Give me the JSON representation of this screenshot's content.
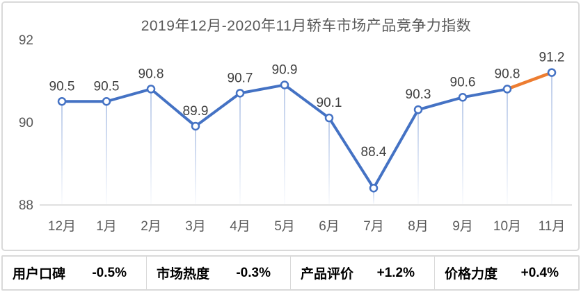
{
  "title": "2019年12月-2020年11月轿车市场产品竞争力指数",
  "chart_data": {
    "type": "line",
    "title": "2019年12月-2020年11月轿车市场产品竞争力指数",
    "categories": [
      "12月",
      "1月",
      "2月",
      "3月",
      "4月",
      "5月",
      "6月",
      "7月",
      "8月",
      "9月",
      "10月",
      "11月"
    ],
    "series": [
      {
        "name": "产品竞争力指数",
        "values": [
          90.5,
          90.5,
          90.8,
          89.9,
          90.7,
          90.9,
          90.1,
          88.4,
          90.3,
          90.6,
          90.8,
          91.2
        ]
      }
    ],
    "data_labels": [
      "90.5",
      "90.5",
      "90.8",
      "89.9",
      "90.7",
      "90.9",
      "90.1",
      "88.4",
      "90.3",
      "90.6",
      "90.8",
      "91.2"
    ],
    "ylim": [
      88,
      92
    ],
    "yticks": [
      "92",
      "90",
      "88"
    ],
    "ytick_values": [
      92,
      90,
      88
    ],
    "grid": "off",
    "legend": "none",
    "xlabel": "",
    "ylabel": "",
    "colors": {
      "line": "#4472C4",
      "last_segment": "#ED7D31",
      "marker_fill": "#FFFFFF",
      "marker_stroke": "#4472C4",
      "drop_line": "#8EA9DB",
      "axis_line": "#D9D9D9",
      "data_label": "#404040",
      "tick_label": "#595959",
      "title": "#595959"
    }
  },
  "summary": {
    "items": [
      {
        "label": "用户口碑",
        "value": "-0.5%"
      },
      {
        "label": "市场热度",
        "value": "-0.3%"
      },
      {
        "label": "产品评价",
        "value": "+1.2%"
      },
      {
        "label": "价格力度",
        "value": "+0.4%"
      }
    ]
  }
}
